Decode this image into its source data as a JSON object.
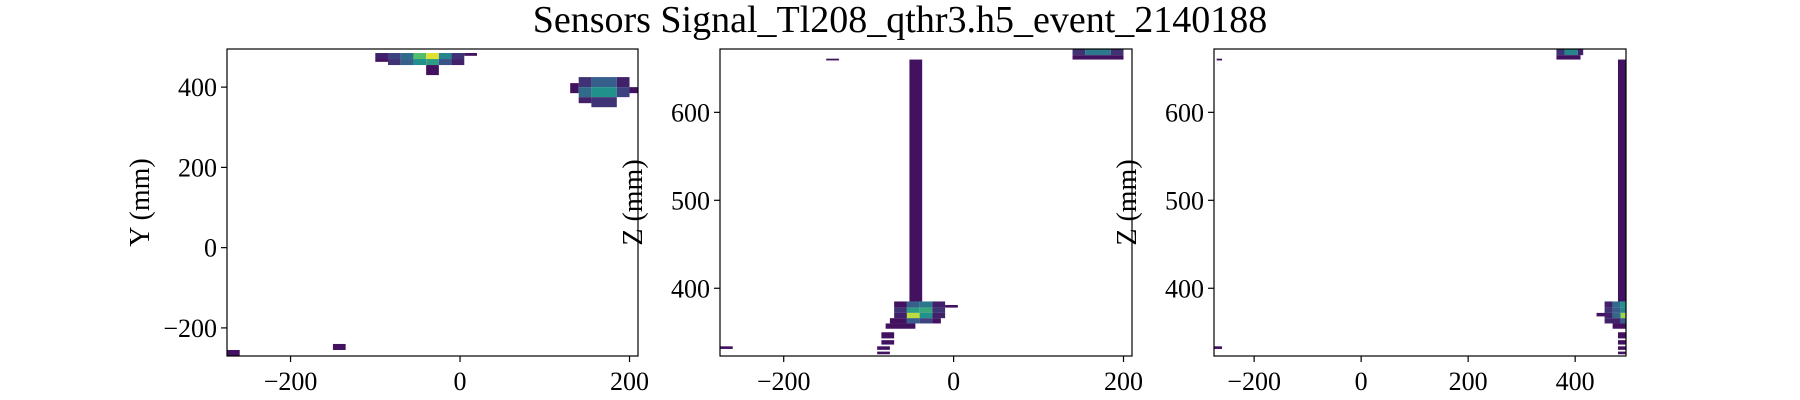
{
  "figure": {
    "title": "Sensors Signal_Tl208_qthr3.h5_event_2140188"
  },
  "chart_data": [
    {
      "type": "heatmap",
      "panel": "XY",
      "xlabel": "",
      "ylabel": "Y (mm)",
      "xlim": [
        -275,
        210
      ],
      "ylim": [
        -270,
        495
      ],
      "xticks": [
        -200,
        0,
        200
      ],
      "yticks": [
        -200,
        0,
        200,
        400
      ],
      "cells": [
        {
          "x0": -100,
          "x1": -85,
          "y0": 470,
          "y1": 485,
          "level": 0.1
        },
        {
          "x0": -85,
          "x1": -70,
          "y0": 470,
          "y1": 485,
          "level": 0.2
        },
        {
          "x0": -70,
          "x1": -55,
          "y0": 470,
          "y1": 485,
          "level": 0.35
        },
        {
          "x0": -55,
          "x1": -40,
          "y0": 470,
          "y1": 485,
          "level": 0.7
        },
        {
          "x0": -40,
          "x1": -25,
          "y0": 470,
          "y1": 485,
          "level": 0.95
        },
        {
          "x0": -25,
          "x1": -10,
          "y0": 470,
          "y1": 485,
          "level": 0.45
        },
        {
          "x0": -10,
          "x1": 5,
          "y0": 470,
          "y1": 485,
          "level": 0.15
        },
        {
          "x0": 5,
          "x1": 20,
          "y0": 478,
          "y1": 485,
          "level": 0.05
        },
        {
          "x0": -100,
          "x1": -85,
          "y0": 463,
          "y1": 470,
          "level": 0.05
        },
        {
          "x0": -85,
          "x1": -70,
          "y0": 455,
          "y1": 470,
          "level": 0.15
        },
        {
          "x0": -70,
          "x1": -55,
          "y0": 455,
          "y1": 470,
          "level": 0.3
        },
        {
          "x0": -55,
          "x1": -40,
          "y0": 455,
          "y1": 470,
          "level": 0.5
        },
        {
          "x0": -40,
          "x1": -25,
          "y0": 455,
          "y1": 470,
          "level": 0.55
        },
        {
          "x0": -25,
          "x1": -10,
          "y0": 455,
          "y1": 470,
          "level": 0.25
        },
        {
          "x0": -10,
          "x1": 5,
          "y0": 455,
          "y1": 470,
          "level": 0.1
        },
        {
          "x0": -40,
          "x1": -25,
          "y0": 430,
          "y1": 455,
          "level": 0.05
        },
        {
          "x0": 140,
          "x1": 155,
          "y0": 400,
          "y1": 425,
          "level": 0.15
        },
        {
          "x0": 155,
          "x1": 185,
          "y0": 400,
          "y1": 425,
          "level": 0.3
        },
        {
          "x0": 185,
          "x1": 200,
          "y0": 400,
          "y1": 425,
          "level": 0.1
        },
        {
          "x0": 130,
          "x1": 140,
          "y0": 385,
          "y1": 410,
          "level": 0.05
        },
        {
          "x0": 140,
          "x1": 155,
          "y0": 375,
          "y1": 400,
          "level": 0.35
        },
        {
          "x0": 155,
          "x1": 185,
          "y0": 375,
          "y1": 400,
          "level": 0.5
        },
        {
          "x0": 185,
          "x1": 200,
          "y0": 375,
          "y1": 400,
          "level": 0.2
        },
        {
          "x0": 200,
          "x1": 210,
          "y0": 385,
          "y1": 400,
          "level": 0.05
        },
        {
          "x0": 140,
          "x1": 155,
          "y0": 360,
          "y1": 375,
          "level": 0.1
        },
        {
          "x0": 155,
          "x1": 185,
          "y0": 350,
          "y1": 375,
          "level": 0.15
        },
        {
          "x0": -275,
          "x1": -260,
          "y0": -270,
          "y1": -255,
          "level": 0.05
        },
        {
          "x0": -150,
          "x1": -135,
          "y0": -255,
          "y1": -240,
          "level": 0.05
        }
      ]
    },
    {
      "type": "heatmap",
      "panel": "XZ",
      "xlabel": "",
      "ylabel": "Z (mm)",
      "xlim": [
        -275,
        210
      ],
      "ylim": [
        323,
        672
      ],
      "xticks": [
        -200,
        0,
        200
      ],
      "yticks": [
        400,
        500,
        600
      ],
      "cells": [
        {
          "x0": -52,
          "x1": -37,
          "y0": 385,
          "y1": 660,
          "level": 0.05
        },
        {
          "x0": -70,
          "x1": -55,
          "y0": 378,
          "y1": 385,
          "level": 0.05
        },
        {
          "x0": -55,
          "x1": -40,
          "y0": 378,
          "y1": 385,
          "level": 0.3
        },
        {
          "x0": -40,
          "x1": -25,
          "y0": 378,
          "y1": 385,
          "level": 0.4
        },
        {
          "x0": -25,
          "x1": -10,
          "y0": 378,
          "y1": 385,
          "level": 0.1
        },
        {
          "x0": -70,
          "x1": -55,
          "y0": 372,
          "y1": 378,
          "level": 0.15
        },
        {
          "x0": -55,
          "x1": -40,
          "y0": 372,
          "y1": 378,
          "level": 0.55
        },
        {
          "x0": -40,
          "x1": -25,
          "y0": 372,
          "y1": 378,
          "level": 0.6
        },
        {
          "x0": -25,
          "x1": -10,
          "y0": 372,
          "y1": 378,
          "level": 0.15
        },
        {
          "x0": -10,
          "x1": 5,
          "y0": 378,
          "y1": 381,
          "level": 0.05
        },
        {
          "x0": -70,
          "x1": -55,
          "y0": 366,
          "y1": 372,
          "level": 0.1
        },
        {
          "x0": -55,
          "x1": -40,
          "y0": 366,
          "y1": 372,
          "level": 0.9
        },
        {
          "x0": -40,
          "x1": -25,
          "y0": 366,
          "y1": 372,
          "level": 0.5
        },
        {
          "x0": -25,
          "x1": -10,
          "y0": 366,
          "y1": 372,
          "level": 0.1
        },
        {
          "x0": -75,
          "x1": -55,
          "y0": 360,
          "y1": 366,
          "level": 0.05
        },
        {
          "x0": -55,
          "x1": -40,
          "y0": 360,
          "y1": 366,
          "level": 0.3
        },
        {
          "x0": -40,
          "x1": -25,
          "y0": 360,
          "y1": 366,
          "level": 0.2
        },
        {
          "x0": -25,
          "x1": -15,
          "y0": 360,
          "y1": 366,
          "level": 0.05
        },
        {
          "x0": -80,
          "x1": -45,
          "y0": 354,
          "y1": 360,
          "level": 0.05
        },
        {
          "x0": -85,
          "x1": -70,
          "y0": 343,
          "y1": 350,
          "level": 0.05
        },
        {
          "x0": -85,
          "x1": -70,
          "y0": 336,
          "y1": 341,
          "level": 0.05
        },
        {
          "x0": -90,
          "x1": -75,
          "y0": 330,
          "y1": 334,
          "level": 0.05
        },
        {
          "x0": -90,
          "x1": -75,
          "y0": 325,
          "y1": 328,
          "level": 0.05
        },
        {
          "x0": -275,
          "x1": -260,
          "y0": 331,
          "y1": 334,
          "level": 0.05
        },
        {
          "x0": -150,
          "x1": -135,
          "y0": 659,
          "y1": 661,
          "level": 0.05
        },
        {
          "x0": 140,
          "x1": 155,
          "y0": 665,
          "y1": 672,
          "level": 0.15
        },
        {
          "x0": 155,
          "x1": 185,
          "y0": 665,
          "y1": 672,
          "level": 0.4
        },
        {
          "x0": 185,
          "x1": 200,
          "y0": 665,
          "y1": 672,
          "level": 0.15
        },
        {
          "x0": 140,
          "x1": 200,
          "y0": 660,
          "y1": 665,
          "level": 0.05
        }
      ]
    },
    {
      "type": "heatmap",
      "panel": "YZ",
      "xlabel": "",
      "ylabel": "Z (mm)",
      "xlim": [
        -275,
        495
      ],
      "ylim": [
        323,
        672
      ],
      "xticks": [
        -200,
        0,
        200,
        400
      ],
      "yticks": [
        400,
        500,
        600
      ],
      "cells": [
        {
          "x0": 480,
          "x1": 495,
          "y0": 385,
          "y1": 660,
          "level": 0.05
        },
        {
          "x0": 455,
          "x1": 470,
          "y0": 378,
          "y1": 385,
          "level": 0.1
        },
        {
          "x0": 470,
          "x1": 485,
          "y0": 378,
          "y1": 385,
          "level": 0.35
        },
        {
          "x0": 485,
          "x1": 495,
          "y0": 378,
          "y1": 385,
          "level": 0.5
        },
        {
          "x0": 455,
          "x1": 470,
          "y0": 372,
          "y1": 378,
          "level": 0.15
        },
        {
          "x0": 470,
          "x1": 485,
          "y0": 372,
          "y1": 378,
          "level": 0.3
        },
        {
          "x0": 485,
          "x1": 495,
          "y0": 372,
          "y1": 378,
          "level": 0.45
        },
        {
          "x0": 440,
          "x1": 460,
          "y0": 368,
          "y1": 372,
          "level": 0.05
        },
        {
          "x0": 455,
          "x1": 470,
          "y0": 366,
          "y1": 372,
          "level": 0.1
        },
        {
          "x0": 470,
          "x1": 485,
          "y0": 366,
          "y1": 372,
          "level": 0.35
        },
        {
          "x0": 485,
          "x1": 495,
          "y0": 366,
          "y1": 372,
          "level": 0.85
        },
        {
          "x0": 455,
          "x1": 485,
          "y0": 360,
          "y1": 366,
          "level": 0.1
        },
        {
          "x0": 485,
          "x1": 495,
          "y0": 360,
          "y1": 366,
          "level": 0.3
        },
        {
          "x0": 470,
          "x1": 495,
          "y0": 354,
          "y1": 360,
          "level": 0.05
        },
        {
          "x0": 480,
          "x1": 495,
          "y0": 343,
          "y1": 350,
          "level": 0.05
        },
        {
          "x0": 480,
          "x1": 495,
          "y0": 336,
          "y1": 341,
          "level": 0.05
        },
        {
          "x0": 480,
          "x1": 495,
          "y0": 330,
          "y1": 334,
          "level": 0.05
        },
        {
          "x0": 480,
          "x1": 495,
          "y0": 325,
          "y1": 328,
          "level": 0.05
        },
        {
          "x0": -275,
          "x1": -260,
          "y0": 331,
          "y1": 334,
          "level": 0.05
        },
        {
          "x0": -270,
          "x1": -260,
          "y0": 659,
          "y1": 661,
          "level": 0.05
        },
        {
          "x0": 365,
          "x1": 380,
          "y0": 665,
          "y1": 672,
          "level": 0.15
        },
        {
          "x0": 380,
          "x1": 405,
          "y0": 665,
          "y1": 672,
          "level": 0.45
        },
        {
          "x0": 405,
          "x1": 415,
          "y0": 665,
          "y1": 672,
          "level": 0.1
        },
        {
          "x0": 365,
          "x1": 410,
          "y0": 660,
          "y1": 665,
          "level": 0.05
        }
      ]
    }
  ]
}
